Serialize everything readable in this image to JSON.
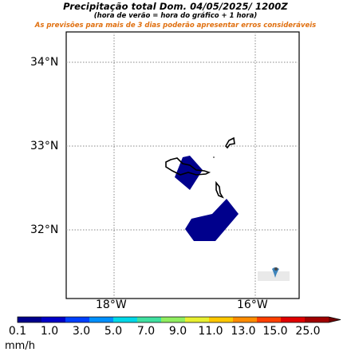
{
  "header": {
    "title": "Precipitação total  Dom. 04/05/2025/ 1200Z",
    "subtitle": "(hora de verão = hora do gráfico + 1 hora)",
    "warning": "As previsões para mais de 3 dias poderão apresentar erros consideráveis"
  },
  "map": {
    "lat_labels": [
      "34°N",
      "33°N",
      "32°N"
    ],
    "lon_labels": [
      "18°W",
      "16°W"
    ],
    "precip_regions": [
      {
        "name": "la-palma-precip",
        "value_mmh": "0.1-1.0",
        "color": "#00008c"
      },
      {
        "name": "southwest-precip",
        "value_mmh": "0.1-1.0",
        "color": "#00008c"
      }
    ],
    "colors": {
      "coastline": "#000000",
      "grid": "#888888",
      "precip": "#00008c"
    }
  },
  "colorbar": {
    "labels": [
      "0.1",
      "1.0",
      "3.0",
      "5.0",
      "7.0",
      "9.0",
      "11.0",
      "13.0",
      "15.0",
      "25.0"
    ],
    "unit": "mm/h",
    "colors": [
      "#00008c",
      "#0000c8",
      "#0040ff",
      "#0090ff",
      "#00d8e8",
      "#40e0a0",
      "#90ee60",
      "#e8f030",
      "#ffc800",
      "#ff8c00",
      "#ff4000",
      "#e00000",
      "#a00000"
    ]
  }
}
